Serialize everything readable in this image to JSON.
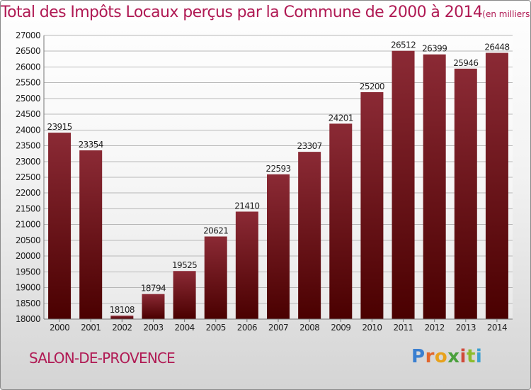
{
  "chart_data": {
    "type": "bar",
    "title": "Total des Impôts Locaux perçus par la Commune de 2000 à 2014",
    "title_unit": "(en milliers d'€)",
    "categories": [
      "2000",
      "2001",
      "2002",
      "2003",
      "2004",
      "2005",
      "2006",
      "2007",
      "2008",
      "2009",
      "2010",
      "2011",
      "2012",
      "2013",
      "2014"
    ],
    "values": [
      23915,
      23354,
      18108,
      18794,
      19525,
      20621,
      21410,
      22593,
      23307,
      24201,
      25200,
      26512,
      26399,
      25946,
      26448
    ],
    "ylim": [
      18000,
      27000
    ],
    "yticks": [
      18000,
      18500,
      19000,
      19500,
      20000,
      20500,
      21000,
      21500,
      22000,
      22500,
      23000,
      23500,
      24000,
      24500,
      25000,
      25500,
      26000,
      26500,
      27000
    ],
    "grid": true,
    "bar_color_top": "#8b2a35",
    "bar_color_bottom": "#4a0000",
    "grid_color": "#b8b8b8"
  },
  "footer": {
    "commune": "SALON-DE-PROVENCE",
    "logo_letters": [
      "P",
      "r",
      "o",
      "x",
      "i",
      "t",
      "i"
    ],
    "logo_colors": [
      "#3a7fd0",
      "#e2662c",
      "#e8a21c",
      "#4aa03c",
      "#d04a3a",
      "#8cbc2c",
      "#3a9fd0"
    ]
  }
}
